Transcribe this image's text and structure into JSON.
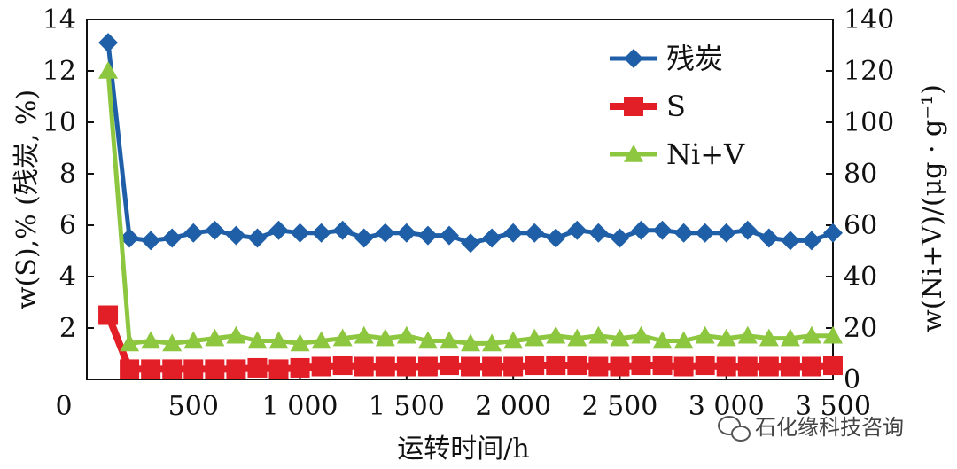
{
  "chart_data": {
    "type": "line",
    "xlabel": "运转时间/h",
    "ylabel_left": "w(S),% (残炭, %)",
    "ylabel_right": "w(Ni+V)/(μg · g⁻¹)",
    "xlim": [
      0,
      3500
    ],
    "ylim_left": [
      0,
      14
    ],
    "ylim_right": [
      0,
      140
    ],
    "x_ticks": [
      0,
      500,
      1000,
      1500,
      2000,
      2500,
      3000,
      3500
    ],
    "x_tick_labels": [
      "0",
      "500",
      "1 000",
      "1 500",
      "2 000",
      "2 500",
      "3 000",
      "3 500"
    ],
    "y_left_ticks": [
      2,
      4,
      6,
      8,
      10,
      12,
      14
    ],
    "y_right_ticks": [
      0,
      20,
      40,
      60,
      80,
      100,
      120,
      140
    ],
    "legend_position": "top-right",
    "grid": false,
    "series": [
      {
        "name": "残炭",
        "axis": "left",
        "color": "#1f5fa8",
        "marker": "diamond",
        "x": [
          100,
          200,
          300,
          400,
          500,
          600,
          700,
          800,
          900,
          1000,
          1100,
          1200,
          1300,
          1400,
          1500,
          1600,
          1700,
          1800,
          1900,
          2000,
          2100,
          2200,
          2300,
          2400,
          2500,
          2600,
          2700,
          2800,
          2900,
          3000,
          3100,
          3200,
          3300,
          3400,
          3500
        ],
        "y": [
          13.1,
          5.5,
          5.4,
          5.5,
          5.7,
          5.8,
          5.6,
          5.5,
          5.8,
          5.7,
          5.7,
          5.8,
          5.5,
          5.7,
          5.7,
          5.6,
          5.6,
          5.3,
          5.5,
          5.7,
          5.7,
          5.5,
          5.8,
          5.7,
          5.5,
          5.8,
          5.8,
          5.7,
          5.7,
          5.7,
          5.8,
          5.5,
          5.4,
          5.4,
          5.7
        ]
      },
      {
        "name": "S",
        "axis": "left",
        "color": "#e21f26",
        "marker": "square",
        "x": [
          100,
          200,
          300,
          400,
          500,
          600,
          700,
          800,
          900,
          1000,
          1100,
          1200,
          1300,
          1400,
          1500,
          1600,
          1700,
          1800,
          1900,
          2000,
          2100,
          2200,
          2300,
          2400,
          2500,
          2600,
          2700,
          2800,
          2900,
          3000,
          3100,
          3200,
          3300,
          3400,
          3500
        ],
        "y": [
          2.5,
          0.4,
          0.4,
          0.4,
          0.4,
          0.4,
          0.4,
          0.45,
          0.4,
          0.45,
          0.5,
          0.55,
          0.5,
          0.5,
          0.5,
          0.5,
          0.55,
          0.5,
          0.5,
          0.5,
          0.55,
          0.55,
          0.55,
          0.5,
          0.5,
          0.55,
          0.55,
          0.5,
          0.55,
          0.5,
          0.5,
          0.5,
          0.5,
          0.5,
          0.55
        ]
      },
      {
        "name": "Ni+V",
        "axis": "right",
        "color": "#8dc63f",
        "marker": "triangle",
        "x": [
          100,
          200,
          300,
          400,
          500,
          600,
          700,
          800,
          900,
          1000,
          1100,
          1200,
          1300,
          1400,
          1500,
          1600,
          1700,
          1800,
          1900,
          2000,
          2100,
          2200,
          2300,
          2400,
          2500,
          2600,
          2700,
          2800,
          2900,
          3000,
          3100,
          3200,
          3300,
          3400,
          3500
        ],
        "y": [
          120,
          14,
          15,
          14,
          15,
          16,
          17,
          15,
          15,
          14,
          15,
          16,
          17,
          16,
          17,
          15,
          15,
          14,
          14,
          15,
          16,
          17,
          16,
          17,
          16,
          17,
          15,
          15,
          17,
          16,
          17,
          16,
          16,
          17,
          17
        ]
      }
    ]
  },
  "watermark": {
    "text": "石化缘科技咨询",
    "icon": "wechat-icon"
  }
}
